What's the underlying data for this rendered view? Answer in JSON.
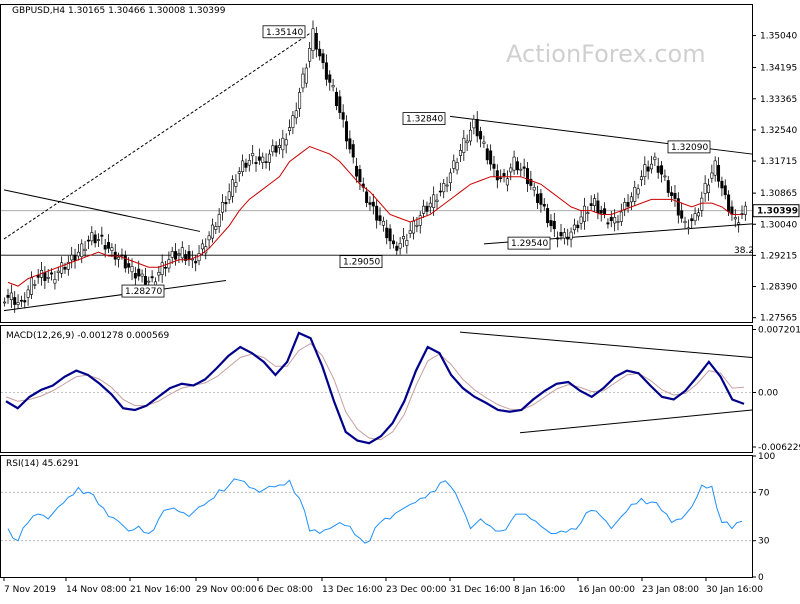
{
  "chart_data": [
    {
      "type": "line",
      "title": "GBPUSD,H4  1.30165 1.30466 1.30008 1.30399",
      "watermark": "ActionForex.com",
      "ylim": [
        1.2745,
        1.3585
      ],
      "y_ticks": [
        "1.35040",
        "1.34195",
        "1.33365",
        "1.32540",
        "1.31715",
        "1.30865",
        "1.30040",
        "1.29215",
        "1.28390",
        "1.27565"
      ],
      "current_price_label": "1.30399",
      "x_tick_labels": [
        "7 Nov 2019",
        "14 Nov 08:00",
        "21 Nov 16:00",
        "29 Nov 00:00",
        "6 Dec 08:00",
        "13 Dec 16:00",
        "23 Dec 00:00",
        "31 Dec 16:00",
        "8 Jan 16:00",
        "16 Jan 00:00",
        "23 Jan 08:00",
        "30 Jan 16:00"
      ],
      "annotations": [
        {
          "label": "1.35140",
          "value": 1.3514
        },
        {
          "label": "1.32840",
          "value": 1.3284
        },
        {
          "label": "1.32090",
          "value": 1.3209
        },
        {
          "label": "1.29540",
          "value": 1.2954
        },
        {
          "label": "1.29050",
          "value": 1.2905
        },
        {
          "label": "1.28270",
          "value": 1.2827
        },
        {
          "label": "38.2",
          "value": 1.2922
        }
      ],
      "series": [
        {
          "name": "",
          "values": [
            1.281,
            1.279,
            1.285,
            1.287,
            1.286,
            1.289,
            1.291,
            1.294,
            1.297,
            1.296,
            1.293,
            1.291,
            1.288,
            1.286,
            1.285,
            1.289,
            1.292,
            1.293,
            1.29,
            1.294,
            1.299,
            1.305,
            1.311,
            1.316,
            1.318,
            1.317,
            1.32,
            1.322,
            1.328,
            1.339,
            1.351,
            1.342,
            1.336,
            1.327,
            1.317,
            1.309,
            1.304,
            1.3,
            1.294,
            1.296,
            1.3,
            1.304,
            1.307,
            1.31,
            1.316,
            1.322,
            1.327,
            1.321,
            1.314,
            1.312,
            1.317,
            1.314,
            1.309,
            1.304,
            1.298,
            1.297,
            1.299,
            1.304,
            1.306,
            1.302,
            1.301,
            1.305,
            1.309,
            1.315,
            1.317,
            1.312,
            1.306,
            1.3,
            1.302,
            1.31,
            1.316,
            1.307,
            1.301,
            1.304
          ]
        },
        {
          "name": "",
          "values": [
            1.285,
            1.284,
            1.286,
            1.287,
            1.288,
            1.289,
            1.29,
            1.291,
            1.292,
            1.293,
            1.292,
            1.292,
            1.291,
            1.29,
            1.289,
            1.289,
            1.29,
            1.291,
            1.291,
            1.292,
            1.294,
            1.297,
            1.3,
            1.304,
            1.307,
            1.309,
            1.311,
            1.313,
            1.317,
            1.319,
            1.321,
            1.32,
            1.319,
            1.317,
            1.314,
            1.311,
            1.309,
            1.306,
            1.303,
            1.302,
            1.301,
            1.302,
            1.303,
            1.305,
            1.307,
            1.309,
            1.311,
            1.312,
            1.313,
            1.313,
            1.313,
            1.313,
            1.312,
            1.311,
            1.309,
            1.307,
            1.305,
            1.304,
            1.304,
            1.303,
            1.303,
            1.304,
            1.305,
            1.306,
            1.307,
            1.307,
            1.307,
            1.306,
            1.305,
            1.306,
            1.306,
            1.305,
            1.303,
            1.303
          ]
        }
      ]
    },
    {
      "type": "line",
      "title": "MACD(12,26,9) -0.001278 0.000569",
      "ylim": [
        -0.0068,
        0.0076
      ],
      "y_ticks": [
        "0.007201",
        "0.00",
        "-0.006229"
      ],
      "series": [
        {
          "name": "",
          "values": [
            -0.001,
            -0.0018,
            -0.0005,
            0.0003,
            0.0008,
            0.0018,
            0.0025,
            0.002,
            0.001,
            -0.0002,
            -0.0018,
            -0.002,
            -0.0015,
            -0.0005,
            0.0005,
            0.001,
            0.0008,
            0.0015,
            0.0028,
            0.0042,
            0.0052,
            0.0045,
            0.0035,
            0.002,
            0.0035,
            0.0068,
            0.0062,
            0.003,
            -0.001,
            -0.0045,
            -0.0055,
            -0.0058,
            -0.005,
            -0.0035,
            -0.001,
            0.0025,
            0.0052,
            0.0045,
            0.002,
            0.0005,
            -0.0005,
            -0.0012,
            -0.002,
            -0.0022,
            -0.002,
            -0.0008,
            0.0002,
            0.001,
            0.0012,
            0.0002,
            -0.0005,
            0.0005,
            0.0018,
            0.0025,
            0.0022,
            0.0008,
            -0.0005,
            -0.0008,
            0.0002,
            0.0018,
            0.0035,
            0.0018,
            -0.0008,
            -0.0013
          ]
        },
        {
          "name": "",
          "values": [
            -0.0005,
            -0.001,
            -0.0008,
            -0.0004,
            0.0002,
            0.001,
            0.0018,
            0.002,
            0.0015,
            0.0006,
            -0.0008,
            -0.0015,
            -0.0015,
            -0.001,
            -0.0002,
            0.0005,
            0.0008,
            0.0011,
            0.0018,
            0.0029,
            0.004,
            0.0044,
            0.004,
            0.003,
            0.003,
            0.0048,
            0.0056,
            0.0042,
            0.0015,
            -0.0022,
            -0.0042,
            -0.0052,
            -0.0054,
            -0.0045,
            -0.0025,
            0.0008,
            0.0036,
            0.0044,
            0.0032,
            0.0015,
            0.0003,
            -0.0006,
            -0.0014,
            -0.0019,
            -0.002,
            -0.0014,
            -0.0005,
            0.0004,
            0.0009,
            0.0006,
            0.0001,
            0.0002,
            0.0011,
            0.002,
            0.0022,
            0.0014,
            0.0003,
            -0.0003,
            -0.0001,
            0.001,
            0.0025,
            0.0022,
            0.0005,
            0.0006
          ]
        }
      ]
    },
    {
      "type": "line",
      "title": "RSI(14) 45.6291",
      "ylim": [
        0,
        100
      ],
      "y_ticks": [
        "100",
        "70",
        "30",
        "0"
      ],
      "series": [
        {
          "name": "",
          "values": [
            40,
            30,
            45,
            52,
            48,
            58,
            66,
            74,
            70,
            60,
            50,
            46,
            38,
            42,
            36,
            48,
            56,
            54,
            50,
            58,
            63,
            72,
            76,
            80,
            74,
            70,
            75,
            76,
            80,
            65,
            38,
            36,
            40,
            45,
            42,
            32,
            30,
            45,
            48,
            55,
            60,
            65,
            70,
            78,
            75,
            60,
            40,
            48,
            42,
            38,
            46,
            52,
            48,
            42,
            36,
            38,
            40,
            45,
            55,
            50,
            40,
            50,
            60,
            65,
            62,
            55,
            45,
            48,
            58,
            76,
            75,
            45,
            40,
            46
          ]
        }
      ]
    }
  ]
}
